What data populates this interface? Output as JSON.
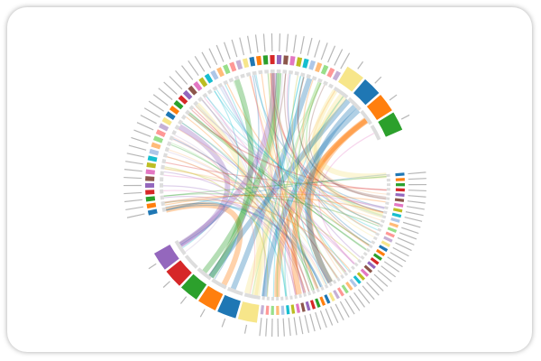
{
  "chart_data": {
    "type": "chord",
    "colors": [
      "#1f77b4",
      "#ff7f0e",
      "#2ca02c",
      "#d62728",
      "#9467bd",
      "#8c564b",
      "#e377c2",
      "#bcbd22",
      "#17becf",
      "#aec7e8",
      "#ffbb78",
      "#98df8a",
      "#ff9896",
      "#c5b0d5",
      "#f7e68a"
    ]
  }
}
